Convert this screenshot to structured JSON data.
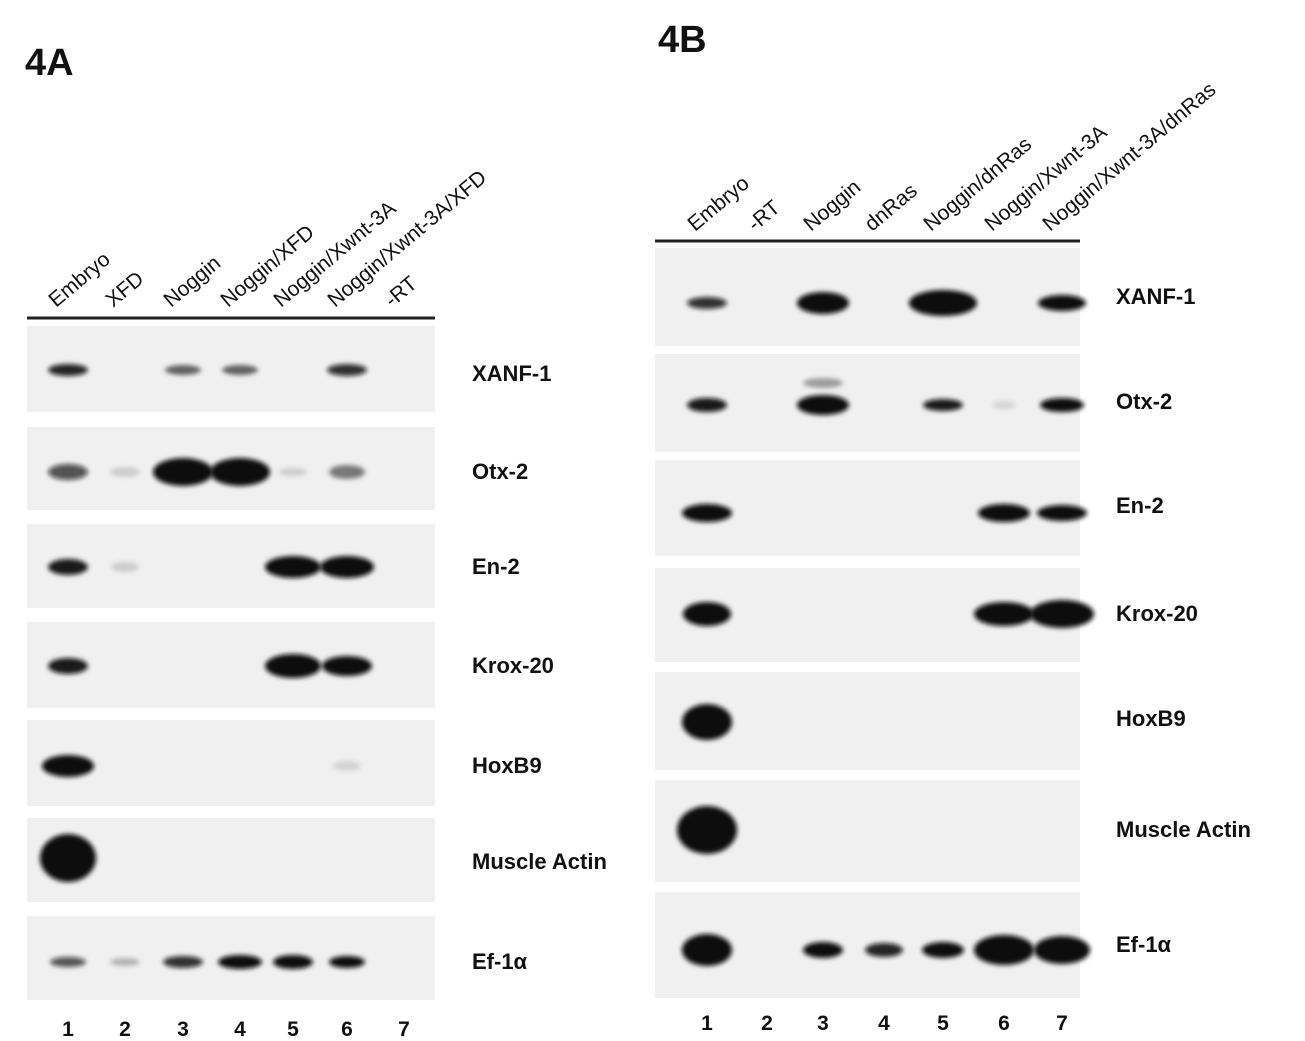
{
  "panel_a": {
    "title": "4A",
    "lanes": [
      "Embryo",
      "XFD",
      "Noggin",
      "Noggin/XFD",
      "Noggin/Xwnt-3A",
      "Noggin/Xwnt-3A/XFD",
      "-RT"
    ],
    "lane_numbers": [
      "1",
      "2",
      "3",
      "4",
      "5",
      "6",
      "7"
    ],
    "genes": [
      "XANF-1",
      "Otx-2",
      "En-2",
      "Krox-20",
      "HoxB9",
      "Muscle Actin",
      "Ef-1α"
    ]
  },
  "panel_b": {
    "title": "4B",
    "lanes": [
      "Embryo",
      "-RT",
      "Noggin",
      "dnRas",
      "Noggin/dnRas",
      "Noggin/Xwnt-3A",
      "Noggin/Xwnt-3A/dnRas"
    ],
    "lane_numbers": [
      "1",
      "2",
      "3",
      "4",
      "5",
      "6",
      "7"
    ],
    "genes": [
      "XANF-1",
      "Otx-2",
      "En-2",
      "Krox-20",
      "HoxB9",
      "Muscle Actin",
      "Ef-1α"
    ]
  }
}
